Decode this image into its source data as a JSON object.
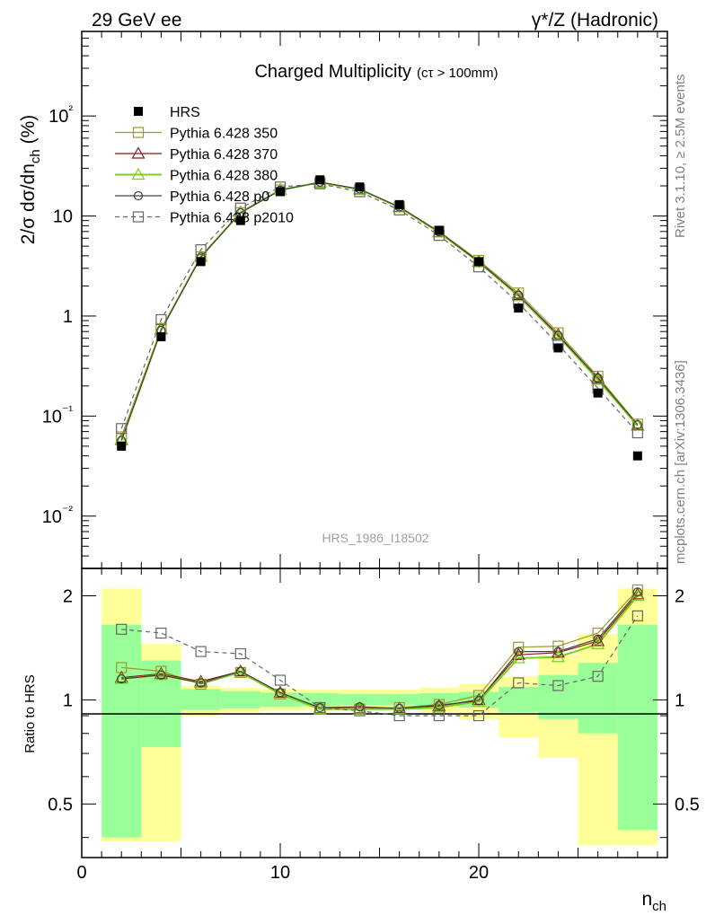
{
  "header": {
    "left": "29 GeV ee",
    "right": "γ*/Z (Hadronic)"
  },
  "side_texts": {
    "top": "Rivet 3.1.10, ≥ 2.5M events",
    "bottom": "mcplots.cern.ch [arXiv:1306.3436]"
  },
  "chart_data": [
    {
      "type": "line",
      "title": "Charged Multiplicity",
      "subtitle": "(cτ > 100mm)",
      "watermark": "HRS_1986_I18502",
      "ylabel": "2/σ dσ/dn_ch (%)",
      "yscale": "log",
      "ylim": [
        0.003,
        700
      ],
      "xlim": [
        0,
        29.5
      ],
      "y_ticks": [
        "10⁻²",
        "10⁻¹",
        "1",
        "10",
        "10²"
      ],
      "legend_position": "top-left",
      "x": [
        2,
        4,
        6,
        8,
        10,
        12,
        14,
        16,
        18,
        20,
        22,
        24,
        26,
        28
      ],
      "series": [
        {
          "name": "HRS",
          "color": "#000000",
          "marker": "filled-square",
          "values": [
            0.05,
            0.62,
            3.5,
            9.0,
            17.5,
            23.0,
            19.5,
            13.0,
            7.2,
            3.5,
            1.2,
            0.48,
            0.17,
            0.04
          ]
        },
        {
          "name": "Pythia 6.428 350",
          "color": "#9a9a2a",
          "marker": "open-square",
          "values": [
            0.062,
            0.75,
            3.9,
            10.8,
            18.2,
            21.6,
            18.4,
            12.4,
            7.0,
            3.6,
            1.7,
            0.68,
            0.25,
            0.083
          ]
        },
        {
          "name": "Pythia 6.428 370",
          "color": "#8b1a1a",
          "marker": "open-triangle",
          "values": [
            0.058,
            0.74,
            3.95,
            10.9,
            18.3,
            21.7,
            18.5,
            12.3,
            6.9,
            3.5,
            1.62,
            0.65,
            0.24,
            0.081
          ]
        },
        {
          "name": "Pythia 6.428 380",
          "color": "#7ccf1a",
          "marker": "open-triangle",
          "values": [
            0.057,
            0.73,
            3.92,
            10.85,
            18.2,
            21.6,
            18.4,
            12.2,
            6.85,
            3.45,
            1.58,
            0.63,
            0.23,
            0.08
          ]
        },
        {
          "name": "Pythia 6.428 p0",
          "color": "#404040",
          "marker": "open-circle",
          "values": [
            0.057,
            0.72,
            3.88,
            10.8,
            18.1,
            21.8,
            18.6,
            12.3,
            6.95,
            3.48,
            1.62,
            0.64,
            0.24,
            0.082
          ]
        },
        {
          "name": "Pythia 6.428 p2010",
          "color": "#666666",
          "marker": "open-square",
          "dashed": true,
          "values": [
            0.075,
            0.92,
            4.6,
            12.0,
            19.5,
            21.0,
            17.5,
            11.5,
            6.4,
            3.1,
            1.35,
            0.52,
            0.19,
            0.068
          ]
        }
      ]
    },
    {
      "type": "line",
      "ylabel": "Ratio to HRS",
      "xlabel": "n_ch",
      "yscale": "log",
      "ylim": [
        0.35,
        2.4
      ],
      "xlim": [
        0,
        29.5
      ],
      "x_ticks": [
        "0",
        "10",
        "20"
      ],
      "y_ticks": [
        "0.5",
        "1",
        "2"
      ],
      "bins": [
        1,
        3,
        5,
        7,
        9,
        11,
        13,
        15,
        17,
        19,
        21,
        23,
        25,
        27,
        29
      ],
      "band_inner": {
        "color": "#99ff99",
        "lo": [
          0.4,
          0.73,
          0.935,
          0.945,
          0.955,
          0.96,
          0.965,
          0.965,
          0.96,
          0.95,
          0.92,
          0.88,
          0.8,
          0.42
        ],
        "hi": [
          1.65,
          1.3,
          1.075,
          1.06,
          1.05,
          1.045,
          1.04,
          1.04,
          1.045,
          1.055,
          1.09,
          1.18,
          1.28,
          1.65
        ]
      },
      "band_outer": {
        "color": "#ffff99",
        "lo": [
          0.39,
          0.39,
          0.9,
          0.92,
          0.93,
          0.935,
          0.94,
          0.94,
          0.92,
          0.88,
          0.78,
          0.68,
          0.38,
          0.38
        ],
        "hi": [
          2.1,
          1.45,
          1.1,
          1.085,
          1.075,
          1.07,
          1.07,
          1.07,
          1.085,
          1.11,
          1.17,
          1.35,
          1.55,
          2.1
        ]
      },
      "x": [
        2,
        4,
        6,
        8,
        10,
        12,
        14,
        16,
        18,
        20,
        22,
        24,
        26,
        28
      ],
      "series": [
        {
          "name": "Pythia 6.428 350",
          "color": "#9a9a2a",
          "marker": "open-square",
          "values": [
            1.24,
            1.21,
            1.11,
            1.2,
            1.04,
            0.94,
            0.94,
            0.95,
            0.97,
            1.03,
            1.42,
            1.43,
            1.56,
            2.08
          ]
        },
        {
          "name": "Pythia 6.428 370",
          "color": "#8b1a1a",
          "marker": "open-triangle",
          "values": [
            1.16,
            1.19,
            1.13,
            1.21,
            1.05,
            0.945,
            0.945,
            0.945,
            0.96,
            1.0,
            1.35,
            1.37,
            1.48,
            2.02
          ]
        },
        {
          "name": "Pythia 6.428 380",
          "color": "#7ccf1a",
          "marker": "open-triangle",
          "values": [
            1.15,
            1.18,
            1.12,
            1.2,
            1.04,
            0.94,
            0.94,
            0.94,
            0.95,
            0.99,
            1.32,
            1.33,
            1.45,
            2.0
          ]
        },
        {
          "name": "Pythia 6.428 p0",
          "color": "#404040",
          "marker": "open-circle",
          "values": [
            1.15,
            1.18,
            1.12,
            1.21,
            1.05,
            0.95,
            0.955,
            0.945,
            0.965,
            0.995,
            1.38,
            1.38,
            1.5,
            2.05
          ]
        },
        {
          "name": "Pythia 6.428 p2010",
          "color": "#666666",
          "marker": "open-square",
          "dashed": true,
          "values": [
            1.6,
            1.56,
            1.38,
            1.36,
            1.14,
            0.95,
            0.93,
            0.9,
            0.9,
            0.9,
            1.12,
            1.1,
            1.17,
            1.75
          ]
        }
      ]
    }
  ]
}
